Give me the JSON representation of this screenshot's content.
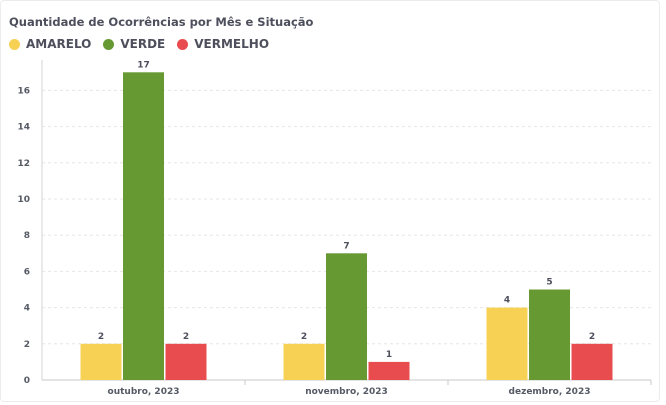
{
  "chart_data": {
    "type": "bar",
    "title": "Quantidade de Ocorrências por Mês e Situação",
    "categories": [
      "outubro, 2023",
      "novembro, 2023",
      "dezembro, 2023"
    ],
    "series": [
      {
        "name": "AMARELO",
        "color": "#f7d154",
        "values": [
          2,
          2,
          4
        ]
      },
      {
        "name": "VERDE",
        "color": "#679933",
        "values": [
          17,
          7,
          5
        ]
      },
      {
        "name": "VERMELHO",
        "color": "#e94c4f",
        "values": [
          2,
          1,
          2
        ]
      }
    ],
    "yticks": [
      0,
      2,
      4,
      6,
      8,
      10,
      12,
      14,
      16
    ],
    "ylim": [
      0,
      18
    ],
    "grid": true,
    "legend": "top-left"
  }
}
